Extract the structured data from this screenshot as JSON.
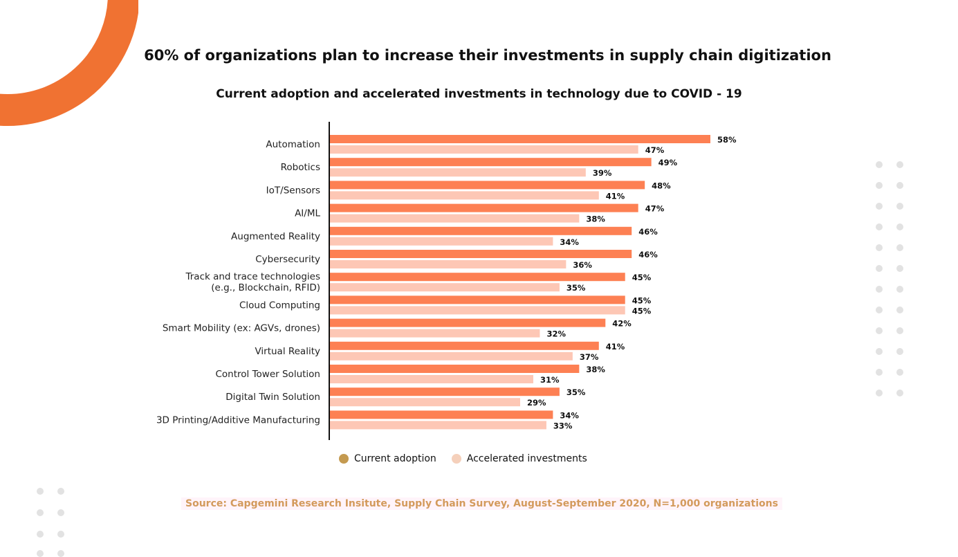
{
  "title": "60% of organizations plan to increase their investments in supply chain digitization",
  "source": "Source: Capgemini Research Insitute, Supply Chain Survey, August-September 2020, N=1,000 organizations",
  "chart_data": {
    "type": "bar",
    "orientation": "horizontal",
    "title": "Current adoption and accelerated investments in technology due to COVID - 19",
    "categories": [
      [
        "Automation"
      ],
      [
        "Robotics"
      ],
      [
        "IoT/Sensors"
      ],
      [
        "AI/ML"
      ],
      [
        "Augmented Reality"
      ],
      [
        "Cybersecurity"
      ],
      [
        "Track and trace technologies",
        "(e.g., Blockchain, RFID)"
      ],
      [
        "Cloud Computing"
      ],
      [
        "Smart Mobility (ex: AGVs, drones)"
      ],
      [
        "Virtual Reality"
      ],
      [
        "Control Tower Solution"
      ],
      [
        "Digital Twin Solution"
      ],
      [
        "3D Printing/Additive Manufacturing"
      ]
    ],
    "series": [
      {
        "name": "Current adoption",
        "color": "#fd8053",
        "legend_color": "#c49a50",
        "values": [
          58,
          49,
          48,
          47,
          46,
          46,
          45,
          45,
          42,
          41,
          38,
          35,
          34
        ]
      },
      {
        "name": "Accelerated investments",
        "color": "#fdc7b5",
        "legend_color": "#f5d0bb",
        "values": [
          47,
          39,
          41,
          38,
          34,
          36,
          35,
          45,
          32,
          37,
          31,
          29,
          33
        ]
      }
    ],
    "value_suffix": "%",
    "xlim": [
      0,
      58
    ],
    "grid": false,
    "legend_position": "bottom"
  },
  "colors": {
    "accent_arc": "#f07232",
    "source_text": "#d39a5c"
  }
}
